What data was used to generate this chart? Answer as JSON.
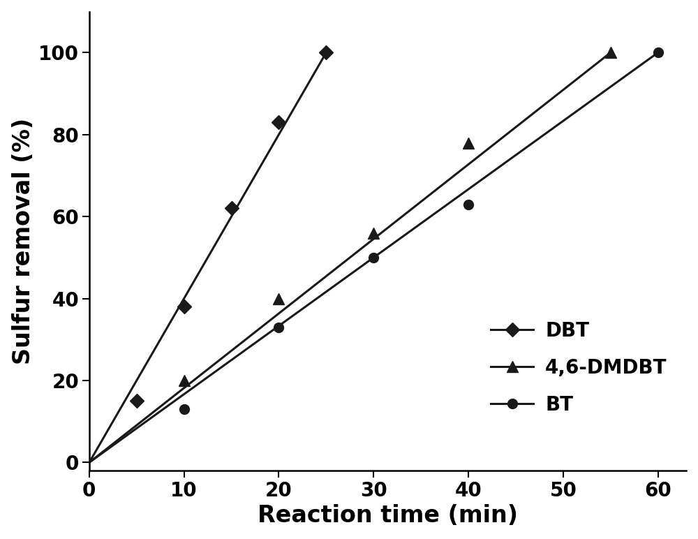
{
  "title": "",
  "xlabel": "Reaction time (min)",
  "ylabel": "Sulfur removal (%)",
  "xlim": [
    0,
    63
  ],
  "ylim": [
    -2,
    110
  ],
  "xticks": [
    0,
    10,
    20,
    30,
    40,
    50,
    60
  ],
  "yticks": [
    0,
    20,
    40,
    60,
    80,
    100
  ],
  "DBT": {
    "x": [
      5,
      10,
      15,
      20,
      25
    ],
    "y": [
      15,
      38,
      62,
      83,
      100
    ],
    "line_x": [
      0,
      25
    ],
    "line_y": [
      0,
      100
    ],
    "color": "#1a1a1a",
    "marker": "D",
    "markersize": 10,
    "linewidth": 2.2,
    "label": "DBT"
  },
  "DMDBT": {
    "x": [
      10,
      20,
      30,
      40,
      55
    ],
    "y": [
      20,
      40,
      56,
      78,
      100
    ],
    "line_x": [
      0,
      55
    ],
    "line_y": [
      0,
      100
    ],
    "color": "#1a1a1a",
    "marker": "^",
    "markersize": 12,
    "linewidth": 2.2,
    "label": "4,6-DMDBT"
  },
  "BT": {
    "x": [
      10,
      20,
      30,
      40,
      60
    ],
    "y": [
      13,
      33,
      50,
      63,
      100
    ],
    "line_x": [
      0,
      60
    ],
    "line_y": [
      0,
      100
    ],
    "color": "#1a1a1a",
    "marker": "o",
    "markersize": 10,
    "linewidth": 2.2,
    "label": "BT"
  },
  "background_color": "#ffffff",
  "tick_fontsize": 20,
  "label_fontsize": 24,
  "legend_fontsize": 20
}
